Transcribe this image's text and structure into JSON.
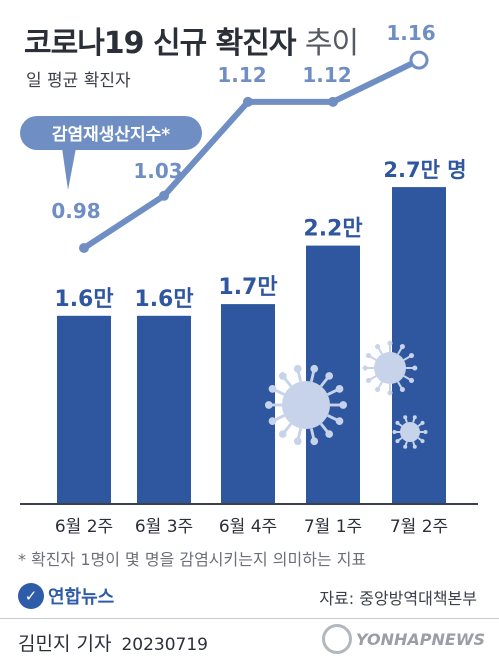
{
  "header": {
    "title_main": "코로나19 신규 확진자",
    "title_suffix": "추이",
    "subtitle": "일 평균 확진자"
  },
  "chart_data": {
    "type": "bar+line",
    "categories": [
      "6월 2주",
      "6월 3주",
      "6월 4주",
      "7월 1주",
      "7월 2주"
    ],
    "bars": {
      "unit": "만",
      "values": [
        1.6,
        1.6,
        1.7,
        2.2,
        2.7
      ],
      "labels": [
        "1.6만",
        "1.6만",
        "1.7만",
        "2.2만",
        "2.7만 명"
      ]
    },
    "line": {
      "name": "감염재생산지수*",
      "values": [
        0.98,
        1.03,
        1.12,
        1.12,
        1.16
      ],
      "labels": [
        "0.98",
        "1.03",
        "1.12",
        "1.12",
        "1.16"
      ]
    },
    "colors": {
      "bar": "#2f579f",
      "line": "#6f8fc4",
      "axis": "#3a3f4a"
    }
  },
  "footer": {
    "footnote": "* 확진자 1명이 몇 명을 감염시키는지 의미하는 지표",
    "source": "자료: 중앙방역대책본부",
    "brand": "연합뉴스",
    "byline": "김민지 기자",
    "date": "20230719",
    "watermark": "YONHAPNEWS"
  },
  "icons": [
    "virus-icon"
  ]
}
